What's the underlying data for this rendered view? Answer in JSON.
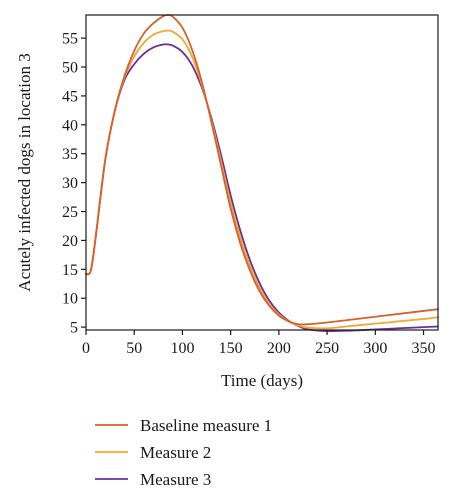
{
  "chart_data": {
    "type": "line",
    "xlabel": "Time (days)",
    "ylabel": "Acutely infected dogs in location 3",
    "xlim": [
      0,
      365
    ],
    "ylim": [
      4.5,
      59
    ],
    "xticks": [
      0,
      50,
      100,
      150,
      200,
      250,
      300,
      350
    ],
    "yticks": [
      5,
      10,
      15,
      20,
      25,
      30,
      35,
      40,
      45,
      50,
      55
    ],
    "grid": false,
    "legend_position": "bottom",
    "series": [
      {
        "name": "Baseline measure 1",
        "color": "#d95f2b",
        "x": [
          0,
          5,
          10,
          20,
          30,
          40,
          50,
          60,
          70,
          80,
          85,
          90,
          100,
          110,
          120,
          130,
          140,
          150,
          160,
          170,
          180,
          190,
          200,
          210,
          220,
          230,
          250,
          275,
          300,
          325,
          350,
          365
        ],
        "y": [
          14.2,
          14.8,
          20.5,
          34,
          42.5,
          48.5,
          52.8,
          55.8,
          57.6,
          58.8,
          59.0,
          58.7,
          56.8,
          53,
          47.5,
          40.5,
          33,
          25.5,
          19.5,
          14.8,
          11.2,
          8.7,
          7.0,
          6.0,
          5.5,
          5.5,
          5.8,
          6.3,
          6.8,
          7.3,
          7.8,
          8.1
        ]
      },
      {
        "name": "Measure 2",
        "color": "#f0a830",
        "x": [
          0,
          5,
          10,
          20,
          30,
          40,
          50,
          60,
          70,
          80,
          85,
          90,
          100,
          110,
          120,
          130,
          140,
          150,
          160,
          170,
          180,
          190,
          200,
          210,
          220,
          230,
          250,
          275,
          300,
          325,
          350,
          365
        ],
        "y": [
          14.2,
          14.8,
          20.5,
          34,
          42.5,
          48.2,
          51.8,
          54.2,
          55.6,
          56.2,
          56.3,
          56.1,
          54.8,
          51.8,
          47,
          40.8,
          33.8,
          26.5,
          20.5,
          15.6,
          11.8,
          9.0,
          7.2,
          6.0,
          5.3,
          4.9,
          4.8,
          5.2,
          5.6,
          6.0,
          6.4,
          6.7
        ]
      },
      {
        "name": "Measure 3",
        "color": "#6b2d9e",
        "x": [
          0,
          5,
          10,
          20,
          30,
          40,
          50,
          60,
          70,
          80,
          85,
          90,
          100,
          110,
          120,
          130,
          140,
          150,
          160,
          170,
          180,
          190,
          200,
          210,
          220,
          230,
          250,
          275,
          300,
          325,
          350,
          365
        ],
        "y": [
          14.2,
          14.8,
          20.5,
          34,
          42.5,
          47.8,
          50.5,
          52.3,
          53.4,
          53.9,
          53.9,
          53.7,
          52.6,
          50.3,
          46.5,
          41.2,
          34.8,
          27.8,
          21.7,
          16.6,
          12.6,
          9.6,
          7.5,
          6.1,
          5.2,
          4.6,
          4.3,
          4.4,
          4.6,
          4.8,
          5.0,
          5.1
        ]
      }
    ]
  }
}
